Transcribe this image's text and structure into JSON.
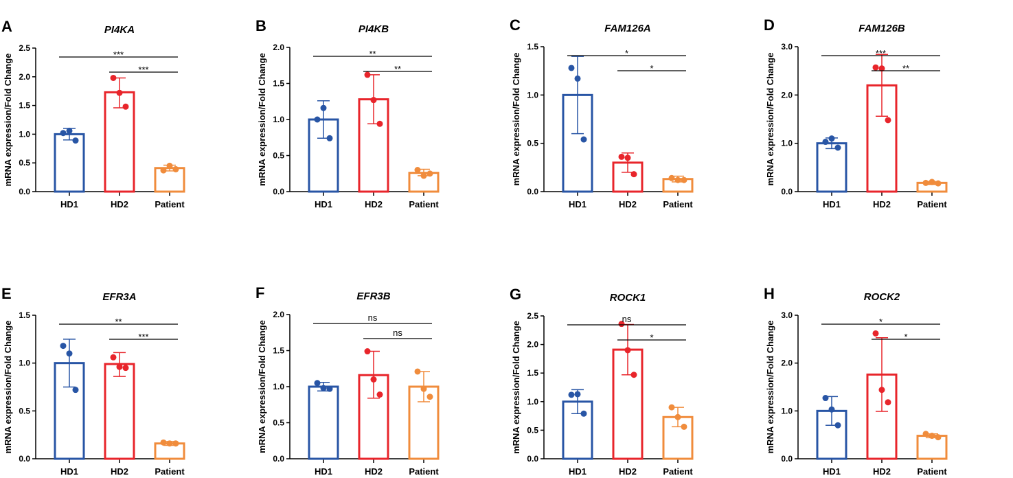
{
  "chart_data": [
    {
      "letter": "A",
      "type": "bar",
      "title": "PI4KA",
      "ylabel": "mRNA expression/Fold Change",
      "categories": [
        "HD1",
        "HD2",
        "Patient"
      ],
      "colors": [
        "#2855a5",
        "#e8252b",
        "#f08c3c"
      ],
      "ylim": [
        0,
        2.5
      ],
      "yticks": [
        "0.0",
        "0.5",
        "1.0",
        "1.5",
        "2.0",
        "2.5"
      ],
      "means": [
        1.0,
        1.73,
        0.41
      ],
      "err_low": [
        0.9,
        1.46,
        0.36
      ],
      "err_high": [
        1.1,
        1.98,
        0.46
      ],
      "points": [
        [
          1.02,
          1.06,
          0.89
        ],
        [
          1.98,
          1.72,
          1.48
        ],
        [
          0.37,
          0.45,
          0.39
        ]
      ],
      "comparisons": [
        {
          "from": "HD1",
          "to": "Patient",
          "label": "***"
        },
        {
          "from": "HD2",
          "to": "Patient",
          "label": "***"
        }
      ]
    },
    {
      "letter": "B",
      "type": "bar",
      "title": "PI4KB",
      "ylabel": "mRNA expression/Fold Change",
      "categories": [
        "HD1",
        "HD2",
        "Patient"
      ],
      "colors": [
        "#2855a5",
        "#e8252b",
        "#f08c3c"
      ],
      "ylim": [
        0,
        2.0
      ],
      "yticks": [
        "0.0",
        "0.5",
        "1.0",
        "1.5",
        "2.0"
      ],
      "means": [
        1.0,
        1.28,
        0.26
      ],
      "err_low": [
        0.74,
        0.94,
        0.22
      ],
      "err_high": [
        1.26,
        1.62,
        0.31
      ],
      "points": [
        [
          1.0,
          1.16,
          0.74
        ],
        [
          1.62,
          1.27,
          0.94
        ],
        [
          0.3,
          0.22,
          0.25
        ]
      ],
      "comparisons": [
        {
          "from": "HD1",
          "to": "Patient",
          "label": "**"
        },
        {
          "from": "HD2",
          "to": "Patient",
          "label": "**"
        }
      ]
    },
    {
      "letter": "C",
      "type": "bar",
      "title": "FAM126A",
      "ylabel": "mRNA expression/Fold Change",
      "categories": [
        "HD1",
        "HD2",
        "Patient"
      ],
      "colors": [
        "#2855a5",
        "#e8252b",
        "#f08c3c"
      ],
      "ylim": [
        0,
        1.5
      ],
      "yticks": [
        "0.0",
        "0.5",
        "1.0",
        "1.5"
      ],
      "means": [
        1.0,
        0.3,
        0.13
      ],
      "err_low": [
        0.6,
        0.2,
        0.1
      ],
      "err_high": [
        1.4,
        0.4,
        0.16
      ],
      "points": [
        [
          1.28,
          1.17,
          0.54
        ],
        [
          0.36,
          0.35,
          0.18
        ],
        [
          0.14,
          0.12,
          0.12
        ]
      ],
      "comparisons": [
        {
          "from": "HD1",
          "to": "Patient",
          "label": "*"
        },
        {
          "from": "HD2",
          "to": "Patient",
          "label": "*"
        }
      ]
    },
    {
      "letter": "D",
      "type": "bar",
      "title": "FAM126B",
      "ylabel": "mRNA expression/Fold Change",
      "categories": [
        "HD1",
        "HD2",
        "Patient"
      ],
      "colors": [
        "#2855a5",
        "#e8252b",
        "#f08c3c"
      ],
      "ylim": [
        0,
        3.0
      ],
      "yticks": [
        "0.0",
        "1.0",
        "2.0",
        "3.0"
      ],
      "means": [
        1.0,
        2.2,
        0.18
      ],
      "err_low": [
        0.89,
        1.56,
        0.15
      ],
      "err_high": [
        1.11,
        2.84,
        0.21
      ],
      "points": [
        [
          1.03,
          1.1,
          0.91
        ],
        [
          2.57,
          2.55,
          1.48
        ],
        [
          0.18,
          0.2,
          0.17
        ]
      ],
      "comparisons": [
        {
          "from": "HD1",
          "to": "Patient",
          "label": "***"
        },
        {
          "from": "HD2",
          "to": "Patient",
          "label": "**"
        }
      ]
    },
    {
      "letter": "E",
      "type": "bar",
      "title": "EFR3A",
      "ylabel": "mRNA expression/Fold Change",
      "categories": [
        "HD1",
        "HD2",
        "Patient"
      ],
      "colors": [
        "#2855a5",
        "#e8252b",
        "#f08c3c"
      ],
      "ylim": [
        0,
        1.5
      ],
      "yticks": [
        "0.0",
        "0.5",
        "1.0",
        "1.5"
      ],
      "means": [
        1.0,
        0.99,
        0.16
      ],
      "err_low": [
        0.75,
        0.86,
        0.14
      ],
      "err_high": [
        1.25,
        1.11,
        0.18
      ],
      "points": [
        [
          1.18,
          1.1,
          0.72
        ],
        [
          1.06,
          0.96,
          0.95
        ],
        [
          0.17,
          0.16,
          0.16
        ]
      ],
      "comparisons": [
        {
          "from": "HD1",
          "to": "Patient",
          "label": "**"
        },
        {
          "from": "HD2",
          "to": "Patient",
          "label": "***"
        }
      ]
    },
    {
      "letter": "F",
      "type": "bar",
      "title": "EFR3B",
      "ylabel": "mRNA expression/Fold Change",
      "categories": [
        "HD1",
        "HD2",
        "Patient"
      ],
      "colors": [
        "#2855a5",
        "#e8252b",
        "#f08c3c"
      ],
      "ylim": [
        0,
        2.0
      ],
      "yticks": [
        "0.0",
        "0.5",
        "1.0",
        "1.5",
        "2.0"
      ],
      "means": [
        1.0,
        1.16,
        1.0
      ],
      "err_low": [
        0.94,
        0.84,
        0.79
      ],
      "err_high": [
        1.06,
        1.49,
        1.21
      ],
      "points": [
        [
          1.05,
          0.98,
          0.97
        ],
        [
          1.49,
          1.1,
          0.89
        ],
        [
          1.21,
          0.97,
          0.86
        ]
      ],
      "comparisons": [
        {
          "from": "HD1",
          "to": "Patient",
          "label": "ns"
        },
        {
          "from": "HD2",
          "to": "Patient",
          "label": "ns"
        }
      ]
    },
    {
      "letter": "G",
      "type": "bar",
      "title": "ROCK1",
      "ylabel": "mRNA expression/Fold Change",
      "categories": [
        "HD1",
        "HD2",
        "Patient"
      ],
      "colors": [
        "#2855a5",
        "#e8252b",
        "#f08c3c"
      ],
      "ylim": [
        0,
        2.5
      ],
      "yticks": [
        "0.0",
        "0.5",
        "1.0",
        "1.5",
        "2.0",
        "2.5"
      ],
      "means": [
        1.0,
        1.91,
        0.73
      ],
      "err_low": [
        0.79,
        1.47,
        0.56
      ],
      "err_high": [
        1.21,
        2.35,
        0.9
      ],
      "points": [
        [
          1.12,
          1.13,
          0.79
        ],
        [
          2.36,
          1.9,
          1.47
        ],
        [
          0.9,
          0.73,
          0.56
        ]
      ],
      "comparisons": [
        {
          "from": "HD1",
          "to": "Patient",
          "label": "ns"
        },
        {
          "from": "HD2",
          "to": "Patient",
          "label": "*"
        }
      ]
    },
    {
      "letter": "H",
      "type": "bar",
      "title": "ROCK2",
      "ylabel": "mRNA expression/Fold Change",
      "categories": [
        "HD1",
        "HD2",
        "Patient"
      ],
      "colors": [
        "#2855a5",
        "#e8252b",
        "#f08c3c"
      ],
      "ylim": [
        0,
        3.0
      ],
      "yticks": [
        "0.0",
        "1.0",
        "2.0",
        "3.0"
      ],
      "means": [
        1.0,
        1.76,
        0.48
      ],
      "err_low": [
        0.7,
        0.99,
        0.44
      ],
      "err_high": [
        1.3,
        2.53,
        0.52
      ],
      "points": [
        [
          1.27,
          1.03,
          0.7
        ],
        [
          2.62,
          1.44,
          1.18
        ],
        [
          0.52,
          0.48,
          0.45
        ]
      ],
      "comparisons": [
        {
          "from": "HD1",
          "to": "Patient",
          "label": "*"
        },
        {
          "from": "HD2",
          "to": "Patient",
          "label": "*"
        }
      ]
    }
  ]
}
